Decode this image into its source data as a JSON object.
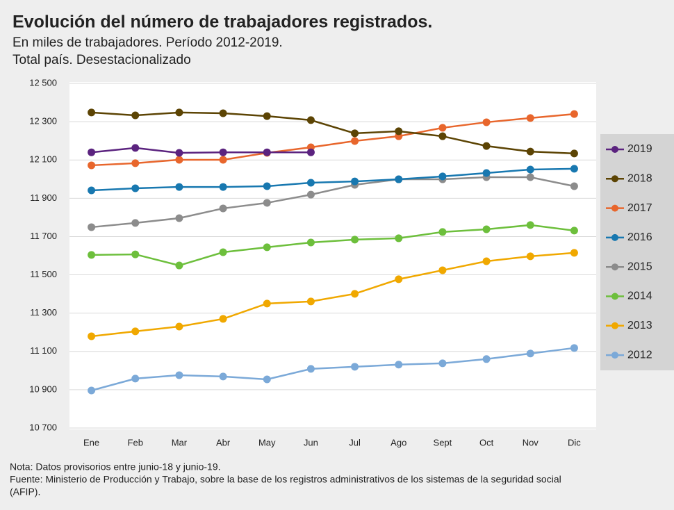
{
  "chart_data": {
    "type": "line",
    "title": "Evolución del número de trabajadores registrados.",
    "subtitle": [
      "En miles de trabajadores. Período 2012-2019.",
      "Total país. Desestacionalizado"
    ],
    "categories": [
      "Ene",
      "Feb",
      "Mar",
      "Abr",
      "May",
      "Jun",
      "Jul",
      "Ago",
      "Sept",
      "Oct",
      "Nov",
      "Dic"
    ],
    "ylim": [
      10700,
      12500
    ],
    "yticks": [
      {
        "value": 10700,
        "label": "10 700"
      },
      {
        "value": 10900,
        "label": "10 900"
      },
      {
        "value": 11100,
        "label": "11 100"
      },
      {
        "value": 11300,
        "label": "11 300"
      },
      {
        "value": 11500,
        "label": "11 500"
      },
      {
        "value": 11700,
        "label": "11 700"
      },
      {
        "value": 11900,
        "label": "11 900"
      },
      {
        "value": 12100,
        "label": "12 100"
      },
      {
        "value": 12300,
        "label": "12 300"
      },
      {
        "value": 12500,
        "label": "12 500"
      }
    ],
    "grid": true,
    "legend": "right",
    "series": [
      {
        "name": "2019",
        "color": "#5b237f",
        "values": [
          12140,
          12163,
          12137,
          12140,
          12140,
          12140,
          null,
          null,
          null,
          null,
          null,
          null
        ]
      },
      {
        "name": "2018",
        "color": "#5c4404",
        "values": [
          12348,
          12333,
          12348,
          12344,
          12329,
          12308,
          12239,
          12250,
          12224,
          12173,
          12144,
          12134
        ]
      },
      {
        "name": "2017",
        "color": "#e8662c",
        "values": [
          12072,
          12083,
          12101,
          12101,
          12137,
          12166,
          12199,
          12224,
          12268,
          12297,
          12319,
          12340
        ]
      },
      {
        "name": "2016",
        "color": "#1878b0",
        "values": [
          11941,
          11952,
          11959,
          11959,
          11963,
          11981,
          11988,
          11999,
          12014,
          12032,
          12050,
          12054
        ]
      },
      {
        "name": "2015",
        "color": "#8c8c8c",
        "values": [
          11749,
          11771,
          11796,
          11847,
          11876,
          11919,
          11970,
          11999,
          11999,
          12010,
          12010,
          11963
        ]
      },
      {
        "name": "2014",
        "color": "#6dbf3c",
        "values": [
          11604,
          11607,
          11549,
          11618,
          11644,
          11669,
          11684,
          11691,
          11724,
          11738,
          11760,
          11731
        ]
      },
      {
        "name": "2013",
        "color": "#f0a800",
        "values": [
          11179,
          11205,
          11230,
          11270,
          11350,
          11361,
          11401,
          11477,
          11524,
          11571,
          11597,
          11615
        ]
      },
      {
        "name": "2012",
        "color": "#7ba9d8",
        "values": [
          10896,
          10958,
          10976,
          10969,
          10954,
          11009,
          11020,
          11031,
          11038,
          11060,
          11089,
          11118
        ]
      }
    ],
    "notes": [
      "Nota:  Datos provisorios entre junio-18 y junio-19.",
      "Fuente: Ministerio de Producción y Trabajo, sobre la base de los registros administrativos de los sistemas de la seguridad social",
      "(AFIP)."
    ]
  }
}
